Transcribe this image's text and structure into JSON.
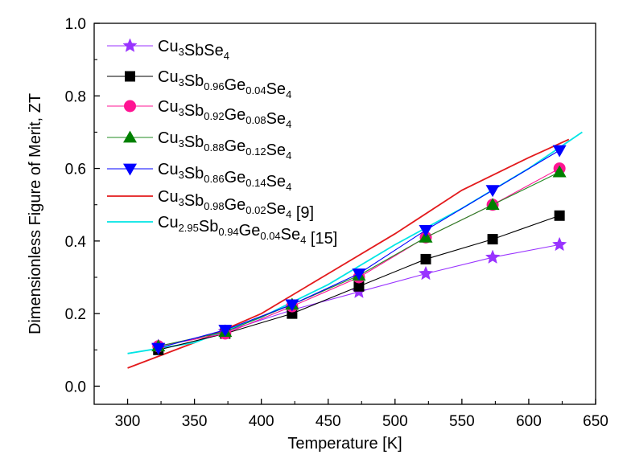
{
  "chart_data": {
    "type": "line",
    "title": "",
    "xlabel": "Temperature [K]",
    "ylabel": "Dimensionless Figure of Merit, ZT",
    "xlim": [
      275,
      650
    ],
    "ylim": [
      -0.05,
      1.0
    ],
    "xticks": [
      300,
      350,
      400,
      450,
      500,
      550,
      600,
      650
    ],
    "yticks": [
      0.0,
      0.2,
      0.4,
      0.6,
      0.8,
      1.0
    ],
    "xtick_labels": [
      "300",
      "350",
      "400",
      "450",
      "500",
      "550",
      "600",
      "650"
    ],
    "ytick_labels": [
      "0.0",
      "0.2",
      "0.4",
      "0.6",
      "0.8",
      "1.0"
    ],
    "grid": false,
    "legend_position": "top-left",
    "series": [
      {
        "name": "Cu3SbSe4",
        "legend_parts": [
          [
            "Cu",
            false
          ],
          [
            "3",
            true
          ],
          [
            "SbSe",
            false
          ],
          [
            "4",
            true
          ]
        ],
        "color": "#9933ff",
        "marker": "star",
        "marker_color": "#9933ff",
        "x": [
          323,
          373,
          423,
          473,
          523,
          573,
          623
        ],
        "y": [
          0.11,
          0.15,
          0.21,
          0.26,
          0.31,
          0.355,
          0.39
        ]
      },
      {
        "name": "Cu3Sb0.96Ge0.04Se4",
        "legend_parts": [
          [
            "Cu",
            false
          ],
          [
            "3",
            true
          ],
          [
            "Sb",
            false
          ],
          [
            "0.96",
            true
          ],
          [
            "Ge",
            false
          ],
          [
            "0.04",
            true
          ],
          [
            "Se",
            false
          ],
          [
            "4",
            true
          ]
        ],
        "color": "#000000",
        "marker": "square",
        "marker_color": "#000000",
        "x": [
          323,
          373,
          423,
          473,
          523,
          573,
          623
        ],
        "y": [
          0.1,
          0.145,
          0.2,
          0.275,
          0.35,
          0.405,
          0.47
        ]
      },
      {
        "name": "Cu3Sb0.92Ge0.08Se4",
        "legend_parts": [
          [
            "Cu",
            false
          ],
          [
            "3",
            true
          ],
          [
            "Sb",
            false
          ],
          [
            "0.92",
            true
          ],
          [
            "Ge",
            false
          ],
          [
            "0.08",
            true
          ],
          [
            "Se",
            false
          ],
          [
            "4",
            true
          ]
        ],
        "color": "#ff1493",
        "marker": "circle",
        "marker_color": "#ff1493",
        "x": [
          323,
          373,
          423,
          473,
          523,
          573,
          623
        ],
        "y": [
          0.11,
          0.145,
          0.22,
          0.3,
          0.41,
          0.5,
          0.6
        ]
      },
      {
        "name": "Cu3Sb0.88Ge0.12Se4",
        "legend_parts": [
          [
            "Cu",
            false
          ],
          [
            "3",
            true
          ],
          [
            "Sb",
            false
          ],
          [
            "0.88",
            true
          ],
          [
            "Ge",
            false
          ],
          [
            "0.12",
            true
          ],
          [
            "Se",
            false
          ],
          [
            "4",
            true
          ]
        ],
        "color": "#228b22",
        "marker": "triangle-up",
        "marker_color": "#008000",
        "x": [
          323,
          373,
          423,
          473,
          523,
          573,
          623
        ],
        "y": [
          0.11,
          0.15,
          0.225,
          0.305,
          0.41,
          0.5,
          0.59
        ]
      },
      {
        "name": "Cu3Sb0.86Ge0.14Se4",
        "legend_parts": [
          [
            "Cu",
            false
          ],
          [
            "3",
            true
          ],
          [
            "Sb",
            false
          ],
          [
            "0.86",
            true
          ],
          [
            "Ge",
            false
          ],
          [
            "0.14",
            true
          ],
          [
            "Se",
            false
          ],
          [
            "4",
            true
          ]
        ],
        "color": "#0000ff",
        "marker": "triangle-down",
        "marker_color": "#0000ff",
        "x": [
          323,
          373,
          423,
          473,
          523,
          573,
          623
        ],
        "y": [
          0.105,
          0.155,
          0.225,
          0.31,
          0.43,
          0.54,
          0.65
        ]
      },
      {
        "name": "Cu3Sb0.98Ge0.02Se4 [9]",
        "legend_parts": [
          [
            "Cu",
            false
          ],
          [
            "3",
            true
          ],
          [
            "Sb",
            false
          ],
          [
            "0.98",
            true
          ],
          [
            "Ge",
            false
          ],
          [
            "0.02",
            true
          ],
          [
            "Se",
            false
          ],
          [
            "4",
            true
          ],
          [
            " [9]",
            false
          ]
        ],
        "color": "#e31a1c",
        "marker": "none",
        "marker_color": "",
        "x": [
          300,
          350,
          400,
          450,
          500,
          550,
          600,
          630
        ],
        "y": [
          0.05,
          0.12,
          0.2,
          0.31,
          0.42,
          0.54,
          0.63,
          0.68
        ]
      },
      {
        "name": "Cu2.95Sb0.94Ge0.04Se4 [15]",
        "legend_parts": [
          [
            "Cu",
            false
          ],
          [
            "2.95",
            true
          ],
          [
            "Sb",
            false
          ],
          [
            "0.94",
            true
          ],
          [
            "Ge",
            false
          ],
          [
            "0.04",
            true
          ],
          [
            "Se",
            false
          ],
          [
            "4",
            true
          ],
          [
            " [15]",
            false
          ]
        ],
        "color": "#00e5e5",
        "marker": "none",
        "marker_color": "",
        "x": [
          300,
          350,
          400,
          450,
          500,
          550,
          600,
          640
        ],
        "y": [
          0.09,
          0.12,
          0.19,
          0.28,
          0.39,
          0.49,
          0.6,
          0.7
        ]
      }
    ]
  }
}
